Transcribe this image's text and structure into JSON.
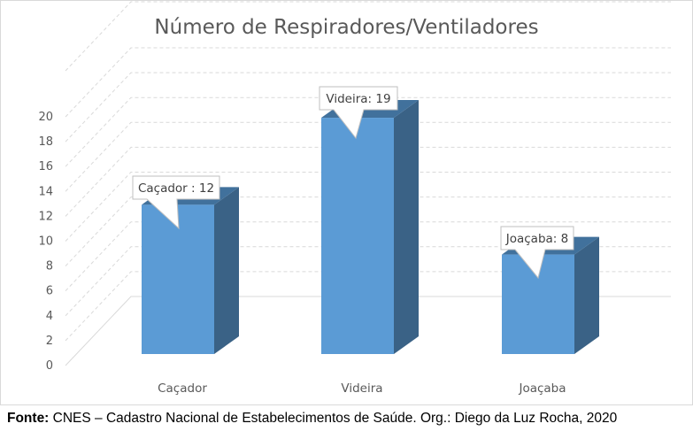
{
  "chart_data": {
    "type": "bar",
    "title": "Número de Respiradores/Ventiladores",
    "categories": [
      "Caçador",
      "Videira",
      "Joaçaba"
    ],
    "values": [
      12,
      19,
      8
    ],
    "data_labels": [
      "Caçador : 12",
      "Videira: 19",
      "Joaçaba: 8"
    ],
    "y_ticks": [
      "0",
      "2",
      "4",
      "6",
      "8",
      "10",
      "12",
      "14",
      "16",
      "18",
      "20"
    ],
    "ylim": [
      0,
      20
    ],
    "grid": true,
    "legend": "none",
    "three_d": true,
    "colors": {
      "bar_front": "#5b9bd5",
      "bar_side": "#3a6286",
      "bar_top": "#41719c",
      "grid": "#d9d9d9",
      "tick_text": "#595959",
      "title_text": "#595959"
    }
  },
  "source": {
    "label": "Fonte:",
    "text": " CNES – Cadastro Nacional de Estabelecimentos de Saúde. Org.: Diego da Luz Rocha, 2020"
  }
}
